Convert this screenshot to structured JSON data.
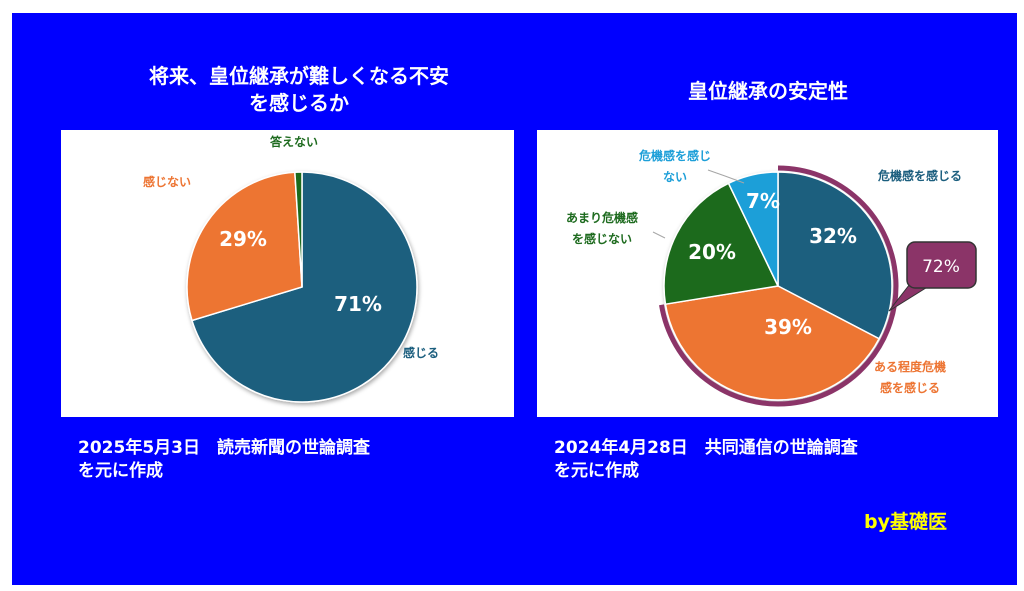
{
  "chart_data": [
    {
      "type": "pie",
      "title_line1": "将来、皇位継承が難しくなる不安",
      "title_line2": "を感じるか",
      "slices": [
        {
          "label": "感じる",
          "value": 71,
          "value_label": "71%",
          "color": "#1b5e7e"
        },
        {
          "label": "感じない",
          "value": 29,
          "value_label": "29%",
          "color": "#ed7533"
        },
        {
          "label": "答えない",
          "value": 1,
          "value_label": "",
          "color": "#1e6b1f"
        }
      ]
    },
    {
      "type": "pie",
      "title": "皇位継承の安定性",
      "slices": [
        {
          "label": "危機感を感じる",
          "value": 32,
          "value_label": "32%",
          "color": "#1b5e7e"
        },
        {
          "label_line1": "ある程度危機",
          "label_line2": "感を感じる",
          "value": 39,
          "value_label": "39%",
          "color": "#ed7533"
        },
        {
          "label_line1": "あまり危機感",
          "label_line2": "を感じない",
          "value": 20,
          "value_label": "20%",
          "color": "#1e6b1f"
        },
        {
          "label_line1": "危機感を感じ",
          "label_line2": "ない",
          "value": 7,
          "value_label": "7%",
          "color": "#1d9fd8"
        }
      ],
      "callout": {
        "value_label": "72%",
        "color": "#8b3468"
      }
    }
  ],
  "sources": {
    "left_line1": "2025年5月3日　読売新聞の世論調査",
    "left_line2": "を元に作成",
    "right_line1": "2024年4月28日　共同通信の世論調査",
    "right_line2": "を元に作成"
  },
  "credit": "by基礎医"
}
